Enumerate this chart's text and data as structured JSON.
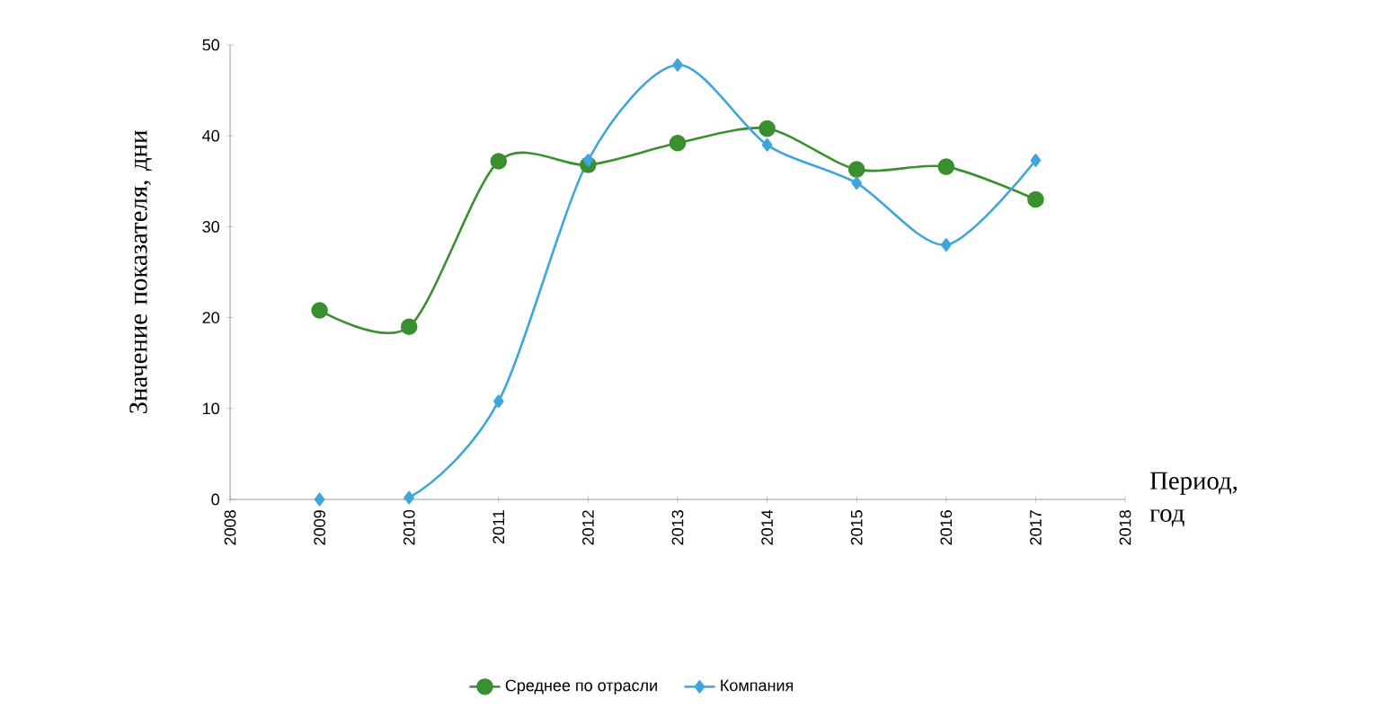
{
  "chart_data": {
    "type": "line",
    "xlabel": "Период, год",
    "ylabel": "Значение показателя, дни",
    "x": [
      2009,
      2010,
      2011,
      2012,
      2013,
      2014,
      2015,
      2016,
      2017
    ],
    "series": [
      {
        "name": "Среднее по отрасли",
        "color": "#3a8f2e",
        "marker": "circle",
        "values": [
          20.8,
          19,
          37.2,
          36.8,
          39.2,
          40.8,
          36.3,
          36.6,
          33
        ]
      },
      {
        "name": "Компания",
        "color": "#3ea6dc",
        "marker": "diamond",
        "values": [
          0,
          0.2,
          10.8,
          37.3,
          47.8,
          39,
          34.8,
          28,
          37.3
        ]
      }
    ],
    "xlim": [
      2008,
      2018
    ],
    "xticks": [
      2008,
      2009,
      2010,
      2011,
      2012,
      2013,
      2014,
      2015,
      2016,
      2017,
      2018
    ],
    "ylim": [
      0,
      50
    ],
    "yticks": [
      0,
      10,
      20,
      30,
      40,
      50
    ],
    "grid": false,
    "legend": "bottom",
    "line_style": "solid"
  }
}
